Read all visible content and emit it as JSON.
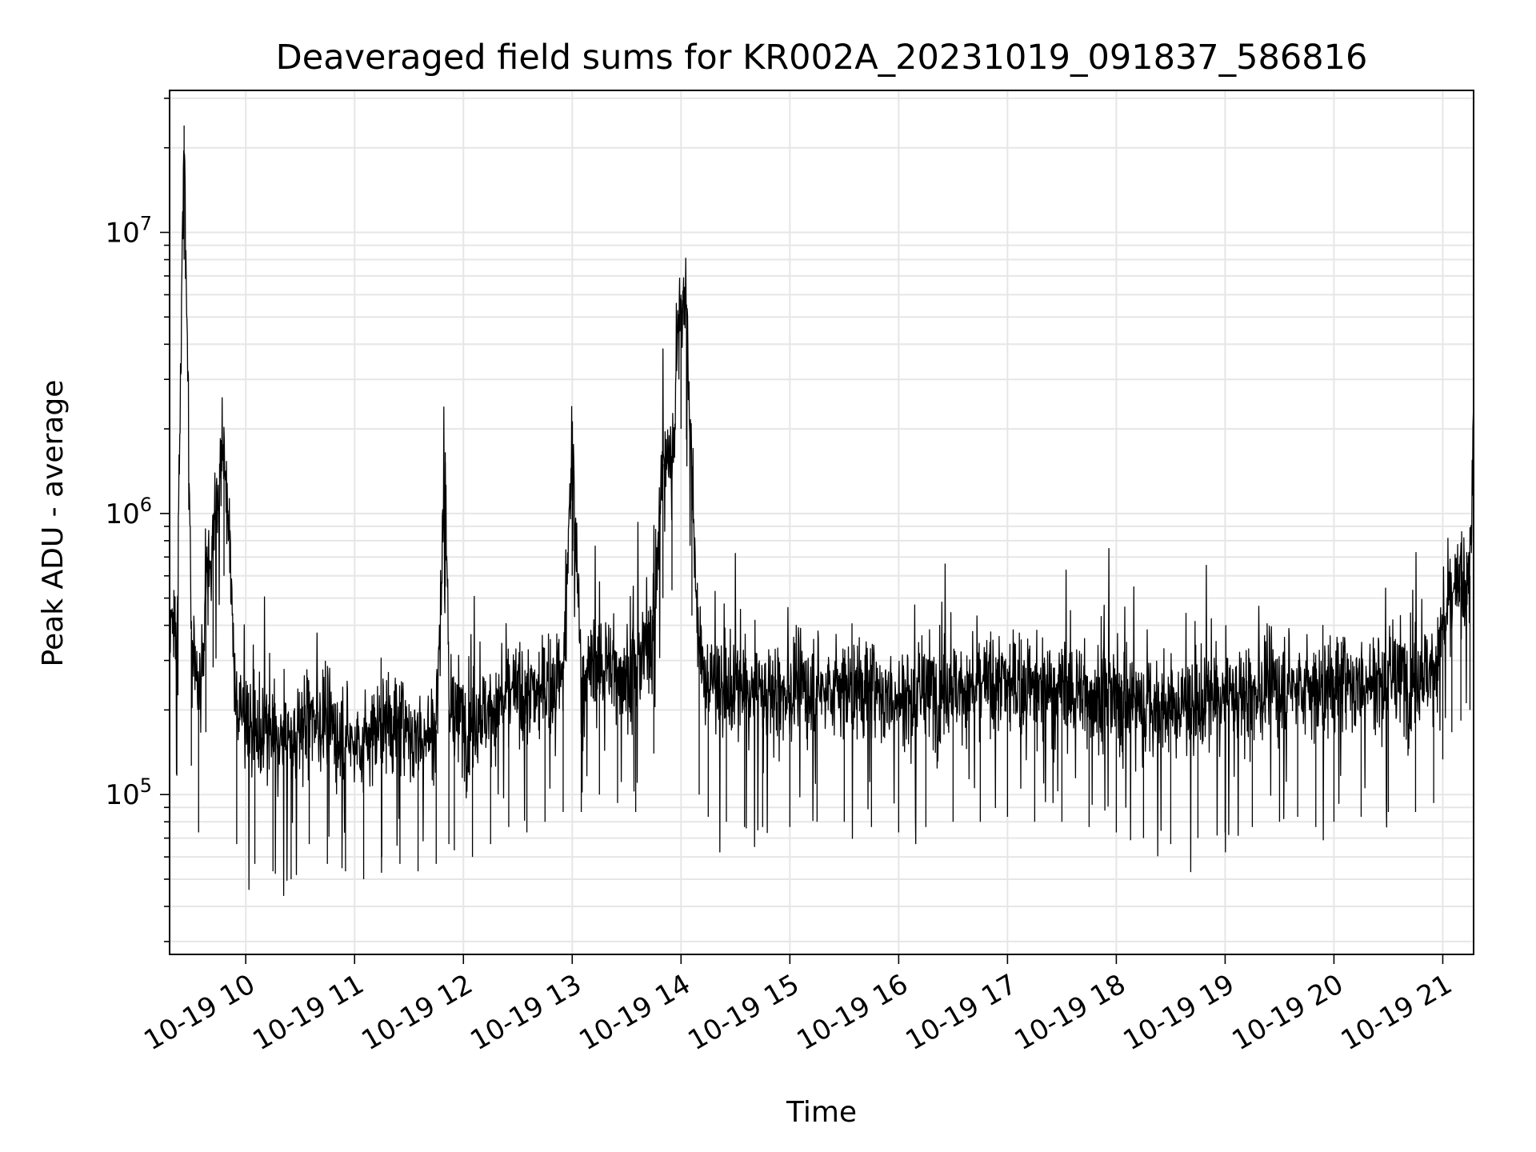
{
  "chart_data": {
    "type": "line",
    "title": "Deaveraged field sums for KR002A_20231019_091837_586816",
    "xlabel": "Time",
    "ylabel": "Peak ADU - average",
    "yscale": "log",
    "ylim": [
      27000,
      32000000
    ],
    "xlim": [
      "10-19 09:18",
      "10-19 21:17"
    ],
    "grid": true,
    "line_color": "#000000",
    "x_ticks": [
      "10-19 10",
      "10-19 11",
      "10-19 12",
      "10-19 13",
      "10-19 14",
      "10-19 15",
      "10-19 16",
      "10-19 17",
      "10-19 18",
      "10-19 19",
      "10-19 20",
      "10-19 21"
    ],
    "y_ticks": [
      {
        "base": "10",
        "exp": "5",
        "value": 100000
      },
      {
        "base": "10",
        "exp": "6",
        "value": 1000000
      },
      {
        "base": "10",
        "exp": "7",
        "value": 10000000
      }
    ],
    "series": [
      {
        "x": [
          "10-19 09:18",
          "10-19 09:22",
          "10-19 09:26",
          "10-19 09:30",
          "10-19 09:34",
          "10-19 09:38",
          "10-19 09:42",
          "10-19 09:48",
          "10-19 09:55",
          "10-19 10:05",
          "10-19 10:15",
          "10-19 10:25",
          "10-19 10:35",
          "10-19 10:45",
          "10-19 10:55",
          "10-19 11:05",
          "10-19 11:15",
          "10-19 11:25",
          "10-19 11:35",
          "10-19 11:45",
          "10-19 11:50",
          "10-19 11:52",
          "10-19 11:55",
          "10-19 12:05",
          "10-19 12:15",
          "10-19 12:25",
          "10-19 12:35",
          "10-19 12:45",
          "10-19 12:55",
          "10-19 13:00",
          "10-19 13:05",
          "10-19 13:15",
          "10-19 13:25",
          "10-19 13:35",
          "10-19 13:45",
          "10-19 13:50",
          "10-19 13:55",
          "10-19 14:00",
          "10-19 14:03",
          "10-19 14:06",
          "10-19 14:10",
          "10-19 14:15",
          "10-19 14:25",
          "10-19 14:35",
          "10-19 14:45",
          "10-19 15:00",
          "10-19 15:15",
          "10-19 15:30",
          "10-19 15:45",
          "10-19 16:00",
          "10-19 16:15",
          "10-19 16:30",
          "10-19 16:45",
          "10-19 17:00",
          "10-19 17:15",
          "10-19 17:30",
          "10-19 17:45",
          "10-19 18:00",
          "10-19 18:15",
          "10-19 18:30",
          "10-19 18:45",
          "10-19 19:00",
          "10-19 19:15",
          "10-19 19:30",
          "10-19 19:40",
          "10-19 19:50",
          "10-19 20:00",
          "10-19 20:15",
          "10-19 20:30",
          "10-19 20:45",
          "10-19 20:55",
          "10-19 21:00",
          "10-19 21:05",
          "10-19 21:10",
          "10-19 21:15",
          "10-19 21:17"
        ],
        "y": [
          420000,
          350000,
          24000000,
          380000,
          220000,
          500000,
          850000,
          1800000,
          200000,
          170000,
          160000,
          150000,
          200000,
          170000,
          160000,
          150000,
          180000,
          170000,
          160000,
          170000,
          1650000,
          200000,
          190000,
          180000,
          200000,
          230000,
          220000,
          240000,
          260000,
          1800000,
          260000,
          300000,
          280000,
          260000,
          420000,
          1500000,
          1600000,
          6000000,
          5500000,
          1300000,
          300000,
          250000,
          240000,
          230000,
          230000,
          230000,
          240000,
          240000,
          230000,
          220000,
          230000,
          240000,
          240000,
          250000,
          240000,
          240000,
          230000,
          220000,
          210000,
          200000,
          210000,
          220000,
          230000,
          240000,
          250000,
          230000,
          240000,
          250000,
          260000,
          260000,
          280000,
          400000,
          500000,
          550000,
          600000,
          2000000
        ]
      }
    ]
  }
}
